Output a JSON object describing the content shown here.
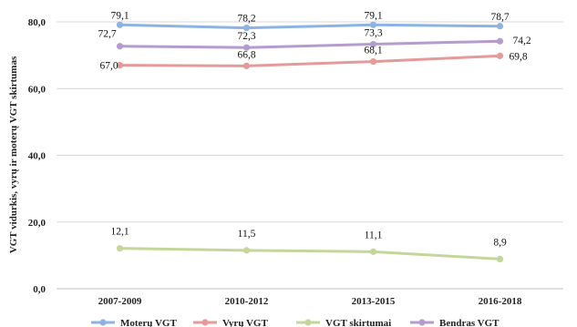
{
  "chart_data": {
    "type": "line",
    "categories": [
      "2007-2009",
      "2010-2012",
      "2013-2015",
      "2016-2018"
    ],
    "ylabel": "VGT vidurkis, vyrų ir moterų VGT skirtumas",
    "ylim": [
      0,
      80
    ],
    "yticks": [
      "0,0",
      "20,0",
      "40,0",
      "60,0",
      "80,0"
    ],
    "grid": true,
    "legend_position": "bottom",
    "series": [
      {
        "name": "Moterų VGT",
        "color": "#8db3e2",
        "values": [
          79.1,
          78.2,
          79.1,
          78.7
        ],
        "labels": [
          "79,1",
          "78,2",
          "79,1",
          "78,7"
        ]
      },
      {
        "name": "Vyrų VGT",
        "color": "#e59a9a",
        "values": [
          67.0,
          66.8,
          68.1,
          69.8
        ],
        "labels": [
          "67,0",
          "66,8",
          "68,1",
          "69,8"
        ]
      },
      {
        "name": "VGT skirtumai",
        "color": "#c4d79b",
        "values": [
          12.1,
          11.5,
          11.1,
          8.9
        ],
        "labels": [
          "12,1",
          "11,5",
          "11,1",
          "8,9"
        ]
      },
      {
        "name": "Bendras VGT",
        "color": "#b59ccf",
        "values": [
          72.7,
          72.3,
          73.3,
          74.2
        ],
        "labels": [
          "72,7",
          "72,3",
          "73,3",
          "74,2"
        ]
      }
    ]
  }
}
